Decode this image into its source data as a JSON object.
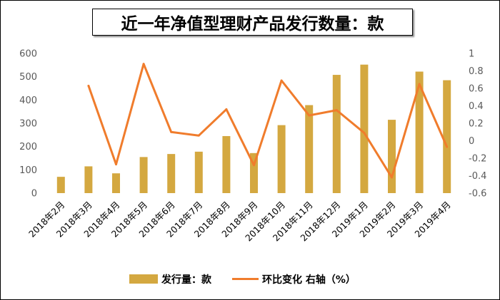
{
  "chart_data": {
    "type": "bar",
    "title": "近一年净值型理财产品发行数量：款",
    "categories": [
      "2018年2月",
      "2018年3月",
      "2018年4月",
      "2018年5月",
      "2018年6月",
      "2018年7月",
      "2018年8月",
      "2018年9月",
      "2018年10月",
      "2018年11月",
      "2018年12月",
      "2019年1月",
      "2019年2月",
      "2019年3月",
      "2019年4月"
    ],
    "series": [
      {
        "name": "发行量：款",
        "type": "bar",
        "axis": "left",
        "color": "#D4A840",
        "values": [
          70,
          115,
          85,
          155,
          168,
          178,
          245,
          172,
          292,
          378,
          508,
          552,
          315,
          522,
          485
        ]
      },
      {
        "name": "环比变化 右轴（%）",
        "type": "line",
        "axis": "right",
        "color": "#F07C2C",
        "values": [
          null,
          0.63,
          -0.27,
          0.88,
          0.1,
          0.06,
          0.36,
          -0.28,
          0.69,
          0.29,
          0.35,
          0.09,
          -0.42,
          0.65,
          -0.07
        ]
      }
    ],
    "ylim": [
      0,
      600
    ],
    "y_ticks": [
      "0",
      "100",
      "200",
      "300",
      "400",
      "500",
      "600"
    ],
    "y2lim": [
      -0.6,
      1
    ],
    "y2_ticks": [
      "-0.6",
      "-0.4",
      "-0.2",
      "0",
      "0.2",
      "0.4",
      "0.6",
      "0.8",
      "1"
    ],
    "grid": false,
    "legend": "bottom"
  }
}
